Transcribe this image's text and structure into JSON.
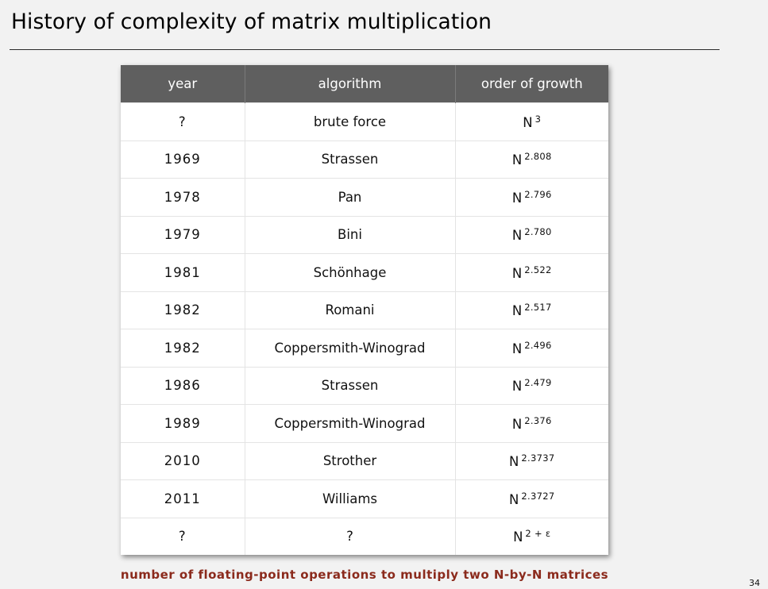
{
  "title": "History of complexity of matrix multiplication",
  "table": {
    "headers": [
      "year",
      "algorithm",
      "order of growth"
    ],
    "rows": [
      {
        "year": "?",
        "algorithm": "brute force",
        "growth_base": "N",
        "growth_exp": "3"
      },
      {
        "year": "1969",
        "algorithm": "Strassen",
        "growth_base": "N",
        "growth_exp": "2.808"
      },
      {
        "year": "1978",
        "algorithm": "Pan",
        "growth_base": "N",
        "growth_exp": "2.796"
      },
      {
        "year": "1979",
        "algorithm": "Bini",
        "growth_base": "N",
        "growth_exp": "2.780"
      },
      {
        "year": "1981",
        "algorithm": "Schönhage",
        "growth_base": "N",
        "growth_exp": "2.522"
      },
      {
        "year": "1982",
        "algorithm": "Romani",
        "growth_base": "N",
        "growth_exp": "2.517"
      },
      {
        "year": "1982",
        "algorithm": "Coppersmith-Winograd",
        "growth_base": "N",
        "growth_exp": "2.496"
      },
      {
        "year": "1986",
        "algorithm": "Strassen",
        "growth_base": "N",
        "growth_exp": "2.479"
      },
      {
        "year": "1989",
        "algorithm": "Coppersmith-Winograd",
        "growth_base": "N",
        "growth_exp": "2.376"
      },
      {
        "year": "2010",
        "algorithm": "Strother",
        "growth_base": "N",
        "growth_exp": "2.3737"
      },
      {
        "year": "2011",
        "algorithm": "Williams",
        "growth_base": "N",
        "growth_exp": "2.3727"
      },
      {
        "year": "?",
        "algorithm": "?",
        "growth_base": "N",
        "growth_exp": "2 + ε"
      }
    ]
  },
  "caption": "number of floating-point operations to multiply two N-by-N matrices",
  "page_number": "34",
  "colors": {
    "background": "#f2f2f2",
    "header_bg": "#5f5f5f",
    "caption": "#8b2a1c"
  }
}
